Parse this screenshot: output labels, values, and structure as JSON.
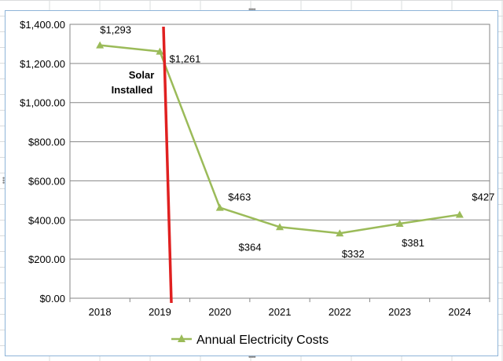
{
  "chart_data": {
    "type": "line",
    "categories": [
      "2018",
      "2019",
      "2020",
      "2021",
      "2022",
      "2023",
      "2024"
    ],
    "series": [
      {
        "name": "Annual Electricity Costs",
        "values": [
          1293,
          1261,
          463,
          364,
          332,
          381,
          427
        ],
        "color": "#9bbb59"
      }
    ],
    "data_labels": [
      "$1,293",
      "$1,261",
      "$463",
      "$364",
      "$332",
      "$381",
      "$427"
    ],
    "y_ticks": [
      0,
      200,
      400,
      600,
      800,
      1000,
      1200,
      1400
    ],
    "y_tick_labels": [
      "$0.00",
      "$200.00",
      "$400.00",
      "$600.00",
      "$800.00",
      "$1,000.00",
      "$1,200.00",
      "$1,400.00"
    ],
    "ylim": [
      0,
      1400
    ],
    "grid": true,
    "legend_position": "bottom",
    "marker": "triangle",
    "annotation": {
      "lines": [
        "Solar",
        "Installed"
      ],
      "marker_color": "#e02020"
    },
    "title": "",
    "xlabel": "",
    "ylabel": ""
  }
}
